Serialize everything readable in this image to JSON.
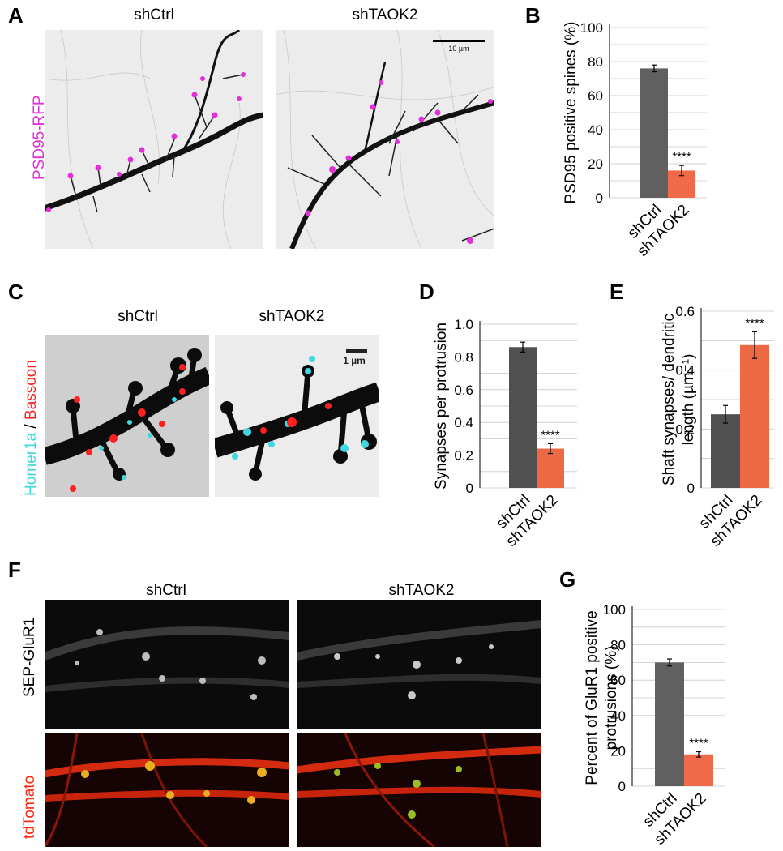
{
  "panels": {
    "A": {
      "letter": "A",
      "cond1": "shCtrl",
      "cond2": "shTAOK2",
      "ylabel": "PSD95-RFP",
      "scalebar": "10 µm",
      "colors": {
        "stain": "#e030d8",
        "bg": "#ececec"
      }
    },
    "C": {
      "letter": "C",
      "cond1": "shCtrl",
      "cond2": "shTAOK2",
      "ylabel_a": "Homer1a",
      "ylabel_sep": " / ",
      "ylabel_b": "Bassoon",
      "scalebar": "1 µm",
      "colors": {
        "homer": "#40d8e0",
        "bassoon": "#ff2020"
      }
    },
    "F": {
      "letter": "F",
      "cond1": "shCtrl",
      "cond2": "shTAOK2",
      "row1": "SEP-GluR1",
      "row2": "tdTomato",
      "colors": {
        "tdtomato": "#ff2a10"
      }
    }
  },
  "chart_data": [
    {
      "id": "B",
      "letter": "B",
      "type": "bar",
      "categories": [
        "shCtrl",
        "shTAOK2"
      ],
      "values": [
        76,
        16
      ],
      "errors": [
        2,
        3
      ],
      "ylabel": "PSD95 positive spines (%)",
      "ylim": [
        0,
        100
      ],
      "yticks": [
        "0",
        "20",
        "40",
        "60",
        "80",
        "100"
      ],
      "yvals": [
        0,
        20,
        40,
        60,
        80,
        100
      ],
      "gridlines": [
        0,
        10,
        20,
        30,
        40,
        50,
        60,
        70,
        80,
        90,
        100
      ],
      "colors": [
        "#606060",
        "#f06a4a"
      ],
      "significance": "****",
      "grid": true
    },
    {
      "id": "D",
      "letter": "D",
      "type": "bar",
      "categories": [
        "shCtrl",
        "shTAOK2"
      ],
      "values": [
        0.86,
        0.24
      ],
      "errors": [
        0.03,
        0.03
      ],
      "ylabel": "Synapses per protrusion",
      "ylim": [
        0,
        1.0
      ],
      "yticks": [
        "0",
        "0.2",
        "0.4",
        "0.6",
        "0.8",
        "1.0"
      ],
      "yvals": [
        0,
        0.2,
        0.4,
        0.6,
        0.8,
        1.0
      ],
      "gridlines": [
        0,
        0.1,
        0.2,
        0.3,
        0.4,
        0.5,
        0.6,
        0.7,
        0.8,
        0.9,
        1.0
      ],
      "colors": [
        "#505050",
        "#ee6844"
      ],
      "significance": "****",
      "grid": true
    },
    {
      "id": "E",
      "letter": "E",
      "type": "bar",
      "categories": [
        "shCtrl",
        "shTAOK2"
      ],
      "values": [
        0.25,
        0.485
      ],
      "errors": [
        0.03,
        0.045
      ],
      "ylabel": "Shaft synapses/ dendritic length (µm⁻¹)",
      "ylim": [
        0,
        0.6
      ],
      "yticks": [
        "0",
        "0.2",
        "0.4",
        "0.6"
      ],
      "yvals": [
        0,
        0.2,
        0.4,
        0.6
      ],
      "gridlines": [
        0,
        0.1,
        0.2,
        0.3,
        0.4,
        0.5,
        0.6
      ],
      "colors": [
        "#505050",
        "#ee6844"
      ],
      "significance": "****",
      "grid": true
    },
    {
      "id": "G",
      "letter": "G",
      "type": "bar",
      "categories": [
        "shCtrl",
        "shTAOK2"
      ],
      "values": [
        70,
        18
      ],
      "errors": [
        2,
        1.5
      ],
      "ylabel": "Percent of GluR1 positive protrusions (%)",
      "ylim": [
        0,
        100
      ],
      "yticks": [
        "0",
        "20",
        "40",
        "60",
        "80",
        "100"
      ],
      "yvals": [
        0,
        20,
        40,
        60,
        80,
        100
      ],
      "gridlines": [
        0,
        10,
        20,
        30,
        40,
        50,
        60,
        70,
        80,
        90,
        100
      ],
      "colors": [
        "#606060",
        "#f06a4a"
      ],
      "significance": "****",
      "grid": true
    }
  ]
}
